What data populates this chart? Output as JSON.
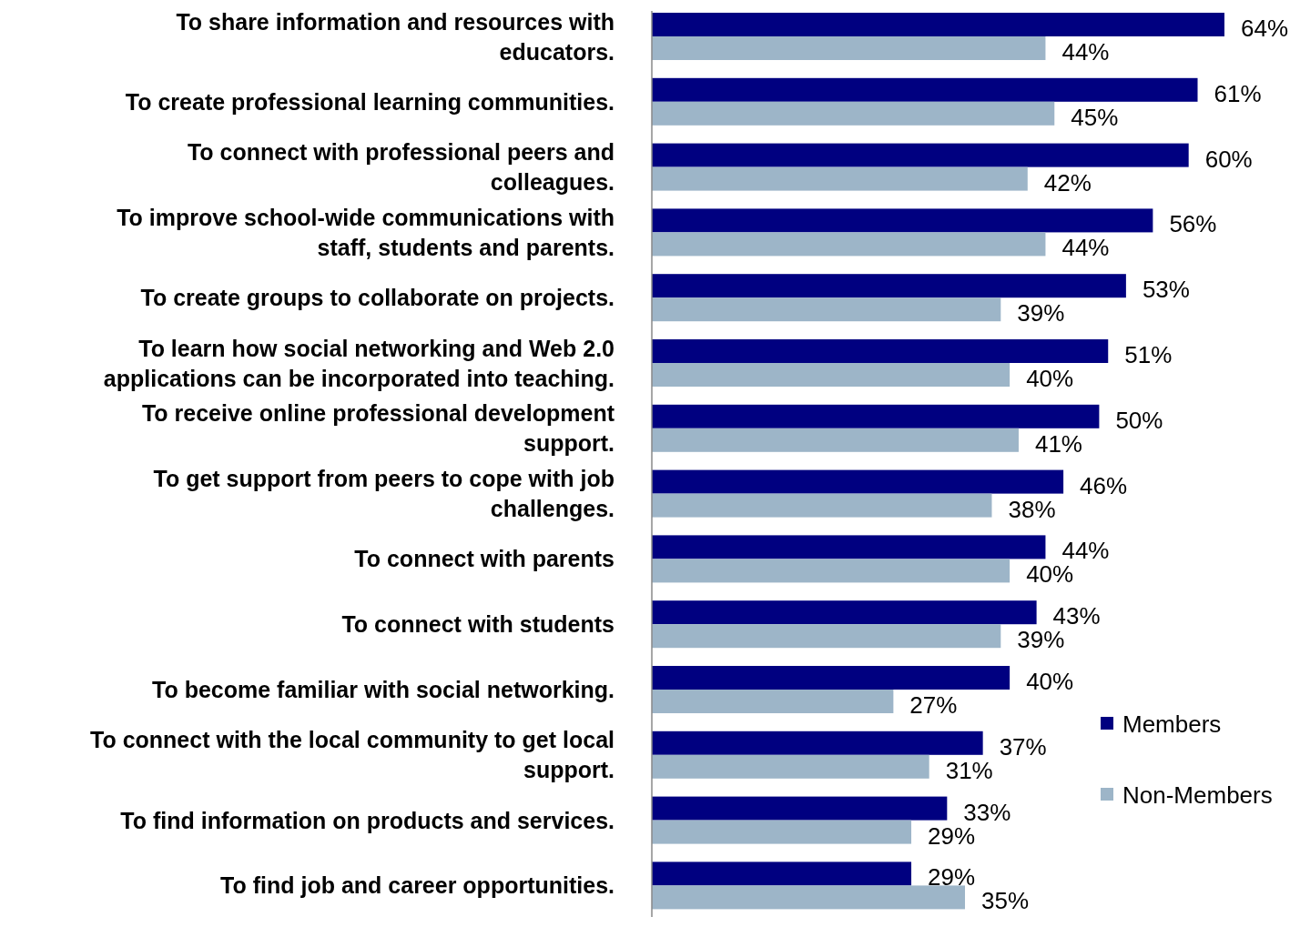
{
  "chart_data": {
    "type": "bar",
    "orientation": "horizontal",
    "relative": false,
    "data_labels": false,
    "legend": "right",
    "categories": [
      "To share information and resources with educators.",
      "To create professional learning communities.",
      "To connect with professional peers and colleagues.",
      "To improve school-wide communications with staff, students and parents.",
      "To create groups to collaborate on projects.",
      "To learn how social networking and Web 2.0 applications can be incorporated into teaching.",
      "To receive online professional development support.",
      "To get support from peers to cope with job challenges.",
      "To connect with parents",
      "To connect with students",
      "To become familiar with social networking.",
      "To connect with the local community to get local support.",
      "To find information on products and services.",
      "To find job and career opportunities."
    ],
    "series": [
      {
        "name": "Members",
        "color": "#000080",
        "values": [
          64,
          61,
          60,
          56,
          53,
          51,
          50,
          46,
          44,
          43,
          40,
          37,
          33,
          29
        ],
        "value_labels": [
          "64%",
          "61%",
          "60%",
          "56%",
          "53%",
          "51%",
          "50%",
          "46%",
          "44%",
          "43%",
          "40%",
          "37%",
          "33%",
          "29%"
        ]
      },
      {
        "name": "Non-Members",
        "color": "#9db5c8",
        "values": [
          44,
          45,
          42,
          44,
          39,
          40,
          41,
          38,
          40,
          39,
          27,
          31,
          29,
          35
        ],
        "value_labels": [
          "44%",
          "45%",
          "42%",
          "44%",
          "39%",
          "40%",
          "41%",
          "38%",
          "40%",
          "39%",
          "27%",
          "31%",
          "29%",
          "35%"
        ]
      }
    ]
  }
}
